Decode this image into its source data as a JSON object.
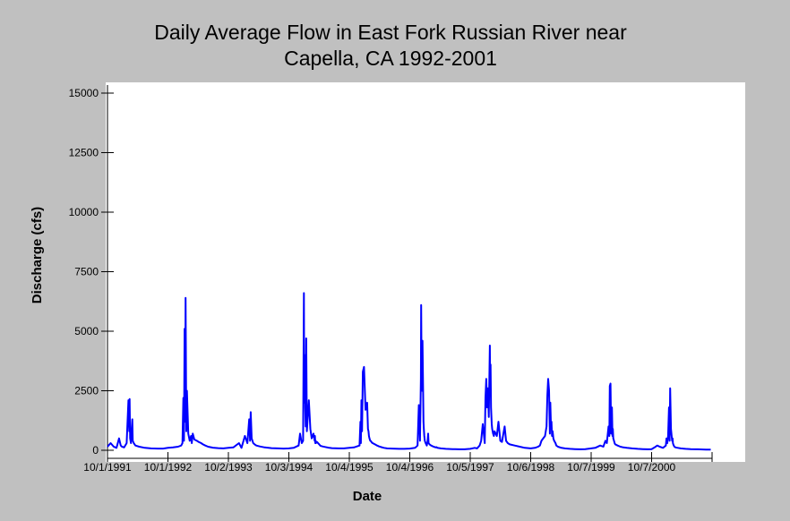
{
  "chart_data": {
    "type": "line",
    "title_line1": "Daily Average Flow in East Fork Russian River near",
    "title_line2": "Capella, CA 1992-2001",
    "xlabel": "Date",
    "ylabel": "Discharge (cfs)",
    "ylim": [
      0,
      15000
    ],
    "xlim": [
      "1991-10-01",
      "2001-09-30"
    ],
    "yticks": [
      {
        "value": 0,
        "label": "0"
      },
      {
        "value": 2500,
        "label": "2500"
      },
      {
        "value": 5000,
        "label": "5000"
      },
      {
        "value": 7500,
        "label": "7500"
      },
      {
        "value": 10000,
        "label": "10000"
      },
      {
        "value": 12500,
        "label": "12500"
      },
      {
        "value": 15000,
        "label": "15000"
      }
    ],
    "xticks": [
      {
        "value": "1991-10-01",
        "label": "10/1/1991"
      },
      {
        "value": "1992-10-01",
        "label": "10/1/1992"
      },
      {
        "value": "1993-10-02",
        "label": "10/2/1993"
      },
      {
        "value": "1994-10-03",
        "label": "10/3/1994"
      },
      {
        "value": "1995-10-04",
        "label": "10/4/1995"
      },
      {
        "value": "1996-10-04",
        "label": "10/4/1996"
      },
      {
        "value": "1997-10-05",
        "label": "10/5/1997"
      },
      {
        "value": "1998-10-06",
        "label": "10/6/1998"
      },
      {
        "value": "1999-10-07",
        "label": "10/7/1999"
      },
      {
        "value": "2000-10-07",
        "label": "10/7/2000"
      },
      {
        "value": "2001-10-08",
        "label": ""
      }
    ],
    "grid": false,
    "legend": "none",
    "series": [
      {
        "color": "#0000ff",
        "x": [
          "1991-10-01",
          "1991-10-20",
          "1991-11-08",
          "1991-11-25",
          "1991-12-10",
          "1991-12-20",
          "1991-12-28",
          "1992-01-10",
          "1992-01-25",
          "1992-02-05",
          "1992-02-10",
          "1992-02-12",
          "1992-02-15",
          "1992-02-20",
          "1992-02-28",
          "1992-03-02",
          "1992-03-08",
          "1992-03-18",
          "1992-04-10",
          "1992-05-15",
          "1992-06-20",
          "1992-08-01",
          "1992-09-01",
          "1992-10-01",
          "1992-11-01",
          "1992-12-01",
          "1992-12-20",
          "1992-12-28",
          "1993-01-02",
          "1993-01-06",
          "1993-01-10",
          "1993-01-13",
          "1993-01-16",
          "1993-01-20",
          "1993-01-24",
          "1993-02-01",
          "1993-02-10",
          "1993-02-18",
          "1993-02-22",
          "1993-02-28",
          "1993-03-10",
          "1993-03-25",
          "1993-04-05",
          "1993-04-20",
          "1993-05-01",
          "1993-05-15",
          "1993-06-01",
          "1993-07-01",
          "1993-08-01",
          "1993-09-01",
          "1993-10-02",
          "1993-11-01",
          "1993-12-05",
          "1993-12-20",
          "1994-01-10",
          "1994-01-25",
          "1994-02-05",
          "1994-02-10",
          "1994-02-14",
          "1994-02-20",
          "1994-03-01",
          "1994-03-10",
          "1994-03-20",
          "1994-04-10",
          "1994-05-10",
          "1994-06-20",
          "1994-08-01",
          "1994-09-01",
          "1994-10-03",
          "1994-11-01",
          "1994-12-01",
          "1994-12-10",
          "1994-12-20",
          "1994-12-28",
          "1995-01-02",
          "1995-01-04",
          "1995-01-08",
          "1995-01-10",
          "1995-01-13",
          "1995-01-16",
          "1995-01-20",
          "1995-02-01",
          "1995-02-10",
          "1995-02-18",
          "1995-03-01",
          "1995-03-08",
          "1995-03-10",
          "1995-03-12",
          "1995-03-14",
          "1995-03-16",
          "1995-03-22",
          "1995-04-05",
          "1995-04-10",
          "1995-04-15",
          "1995-04-25",
          "1995-05-10",
          "1995-06-01",
          "1995-06-20",
          "1995-08-01",
          "1995-09-01",
          "1995-10-04",
          "1995-11-01",
          "1995-12-05",
          "1995-12-10",
          "1995-12-13",
          "1995-12-16",
          "1995-12-20",
          "1995-12-25",
          "1996-01-01",
          "1996-01-10",
          "1996-01-20",
          "1996-01-25",
          "1996-01-28",
          "1996-01-31",
          "1996-02-03",
          "1996-02-05",
          "1996-02-08",
          "1996-02-12",
          "1996-02-15",
          "1996-02-18",
          "1996-02-22",
          "1996-03-01",
          "1996-03-10",
          "1996-03-20",
          "1996-04-01",
          "1996-04-15",
          "1996-05-01",
          "1996-05-20",
          "1996-06-20",
          "1996-08-01",
          "1996-09-01",
          "1996-10-04",
          "1996-11-05",
          "1996-11-20",
          "1996-11-28",
          "1996-12-05",
          "1996-12-10",
          "1996-12-12",
          "1996-12-15",
          "1996-12-20",
          "1996-12-26",
          "1996-12-28",
          "1996-12-31",
          "1997-01-03",
          "1997-01-08",
          "1997-01-15",
          "1997-01-20",
          "1997-01-23",
          "1997-01-26",
          "1997-02-01",
          "1997-02-10",
          "1997-02-25",
          "1997-03-10",
          "1997-03-15",
          "1997-03-20",
          "1997-04-10",
          "1997-05-10",
          "1997-06-20",
          "1997-08-01",
          "1997-09-01",
          "1997-10-05",
          "1997-11-01",
          "1997-11-15",
          "1997-12-01",
          "1997-12-10",
          "1997-12-20",
          "1998-01-01",
          "1998-01-05",
          "1998-01-10",
          "1998-01-15",
          "1998-01-20",
          "1998-01-25",
          "1998-02-01",
          "1998-02-03",
          "1998-02-05",
          "1998-02-08",
          "1998-02-12",
          "1998-02-15",
          "1998-02-20",
          "1998-02-25",
          "1998-03-01",
          "1998-03-15",
          "1998-03-25",
          "1998-04-05",
          "1998-04-15",
          "1998-05-01",
          "1998-05-10",
          "1998-05-20",
          "1998-06-01",
          "1998-07-01",
          "1998-08-01",
          "1998-09-01",
          "1998-10-06",
          "1998-11-01",
          "1998-11-20",
          "1998-12-01",
          "1998-12-10",
          "1999-01-01",
          "1999-01-10",
          "1999-01-15",
          "1999-01-20",
          "1999-01-25",
          "1999-01-30",
          "1999-02-02",
          "1999-02-06",
          "1999-02-09",
          "1999-02-12",
          "1999-02-16",
          "1999-02-20",
          "1999-02-25",
          "1999-03-05",
          "1999-03-10",
          "1999-03-20",
          "1999-04-10",
          "1999-05-01",
          "1999-06-01",
          "1999-07-01",
          "1999-08-01",
          "1999-09-01",
          "1999-10-07",
          "1999-11-01",
          "1999-12-01",
          "1999-12-20",
          "2000-01-01",
          "2000-01-10",
          "2000-01-20",
          "2000-01-25",
          "2000-01-28",
          "2000-02-01",
          "2000-02-05",
          "2000-02-10",
          "2000-02-13",
          "2000-02-15",
          "2000-02-18",
          "2000-02-22",
          "2000-02-26",
          "2000-03-01",
          "2000-03-15",
          "2000-04-01",
          "2000-04-20",
          "2000-05-10",
          "2000-06-10",
          "2000-07-15",
          "2000-08-15",
          "2000-09-15",
          "2000-10-07",
          "2000-10-25",
          "2000-11-10",
          "2000-11-25",
          "2000-12-15",
          "2001-01-01",
          "2001-01-05",
          "2001-01-10",
          "2001-01-15",
          "2001-01-20",
          "2001-01-24",
          "2001-01-27",
          "2001-02-01",
          "2001-02-08",
          "2001-02-11",
          "2001-02-13",
          "2001-02-15",
          "2001-02-18",
          "2001-02-22",
          "2001-03-01",
          "2001-03-15",
          "2001-04-01",
          "2001-05-01",
          "2001-06-01",
          "2001-07-15",
          "2001-09-01",
          "2001-09-30"
        ],
        "values": [
          150,
          300,
          150,
          100,
          500,
          200,
          150,
          120,
          300,
          2100,
          800,
          2150,
          500,
          300,
          1300,
          400,
          300,
          200,
          150,
          100,
          80,
          70,
          70,
          100,
          120,
          150,
          200,
          300,
          2200,
          400,
          5100,
          1200,
          6400,
          800,
          2500,
          700,
          400,
          600,
          300,
          700,
          450,
          400,
          350,
          300,
          250,
          200,
          150,
          110,
          90,
          80,
          100,
          120,
          300,
          100,
          600,
          300,
          1300,
          400,
          1600,
          500,
          300,
          250,
          200,
          160,
          120,
          90,
          80,
          70,
          80,
          100,
          200,
          700,
          300,
          400,
          6600,
          2000,
          4000,
          1800,
          1000,
          4700,
          800,
          2100,
          900,
          500,
          700,
          400,
          600,
          300,
          400,
          300,
          350,
          250,
          200,
          180,
          160,
          140,
          110,
          90,
          80,
          80,
          100,
          120,
          200,
          1200,
          300,
          2100,
          800,
          3300,
          3500,
          1700,
          2000,
          900,
          800,
          600,
          500,
          450,
          400,
          380,
          350,
          320,
          300,
          270,
          240,
          200,
          160,
          130,
          100,
          80,
          70,
          60,
          60,
          70,
          100,
          200,
          1900,
          400,
          3000,
          6100,
          2500,
          4600,
          1200,
          900,
          600,
          400,
          300,
          200,
          400,
          700,
          300,
          250,
          200,
          150,
          120,
          130,
          100,
          80,
          60,
          50,
          40,
          40,
          60,
          100,
          80,
          200,
          400,
          1100,
          300,
          2200,
          3000,
          1800,
          2600,
          1400,
          4400,
          2400,
          3600,
          1800,
          1100,
          900,
          700,
          600,
          800,
          600,
          1200,
          400,
          350,
          1000,
          400,
          300,
          250,
          200,
          150,
          100,
          80,
          100,
          150,
          200,
          400,
          600,
          1000,
          2300,
          3000,
          2500,
          700,
          2000,
          900,
          1200,
          600,
          800,
          500,
          400,
          300,
          200,
          150,
          100,
          80,
          60,
          50,
          40,
          50,
          80,
          100,
          200,
          150,
          400,
          300,
          1000,
          600,
          2700,
          2800,
          700,
          1800,
          600,
          900,
          500,
          400,
          300,
          250,
          200,
          150,
          120,
          100,
          80,
          60,
          50,
          40,
          50,
          120,
          200,
          150,
          100,
          200,
          500,
          300,
          600,
          1800,
          400,
          2600,
          900,
          400,
          500,
          300,
          250,
          200,
          150,
          120,
          100,
          80,
          60,
          50,
          40,
          30,
          30
        ]
      }
    ]
  }
}
